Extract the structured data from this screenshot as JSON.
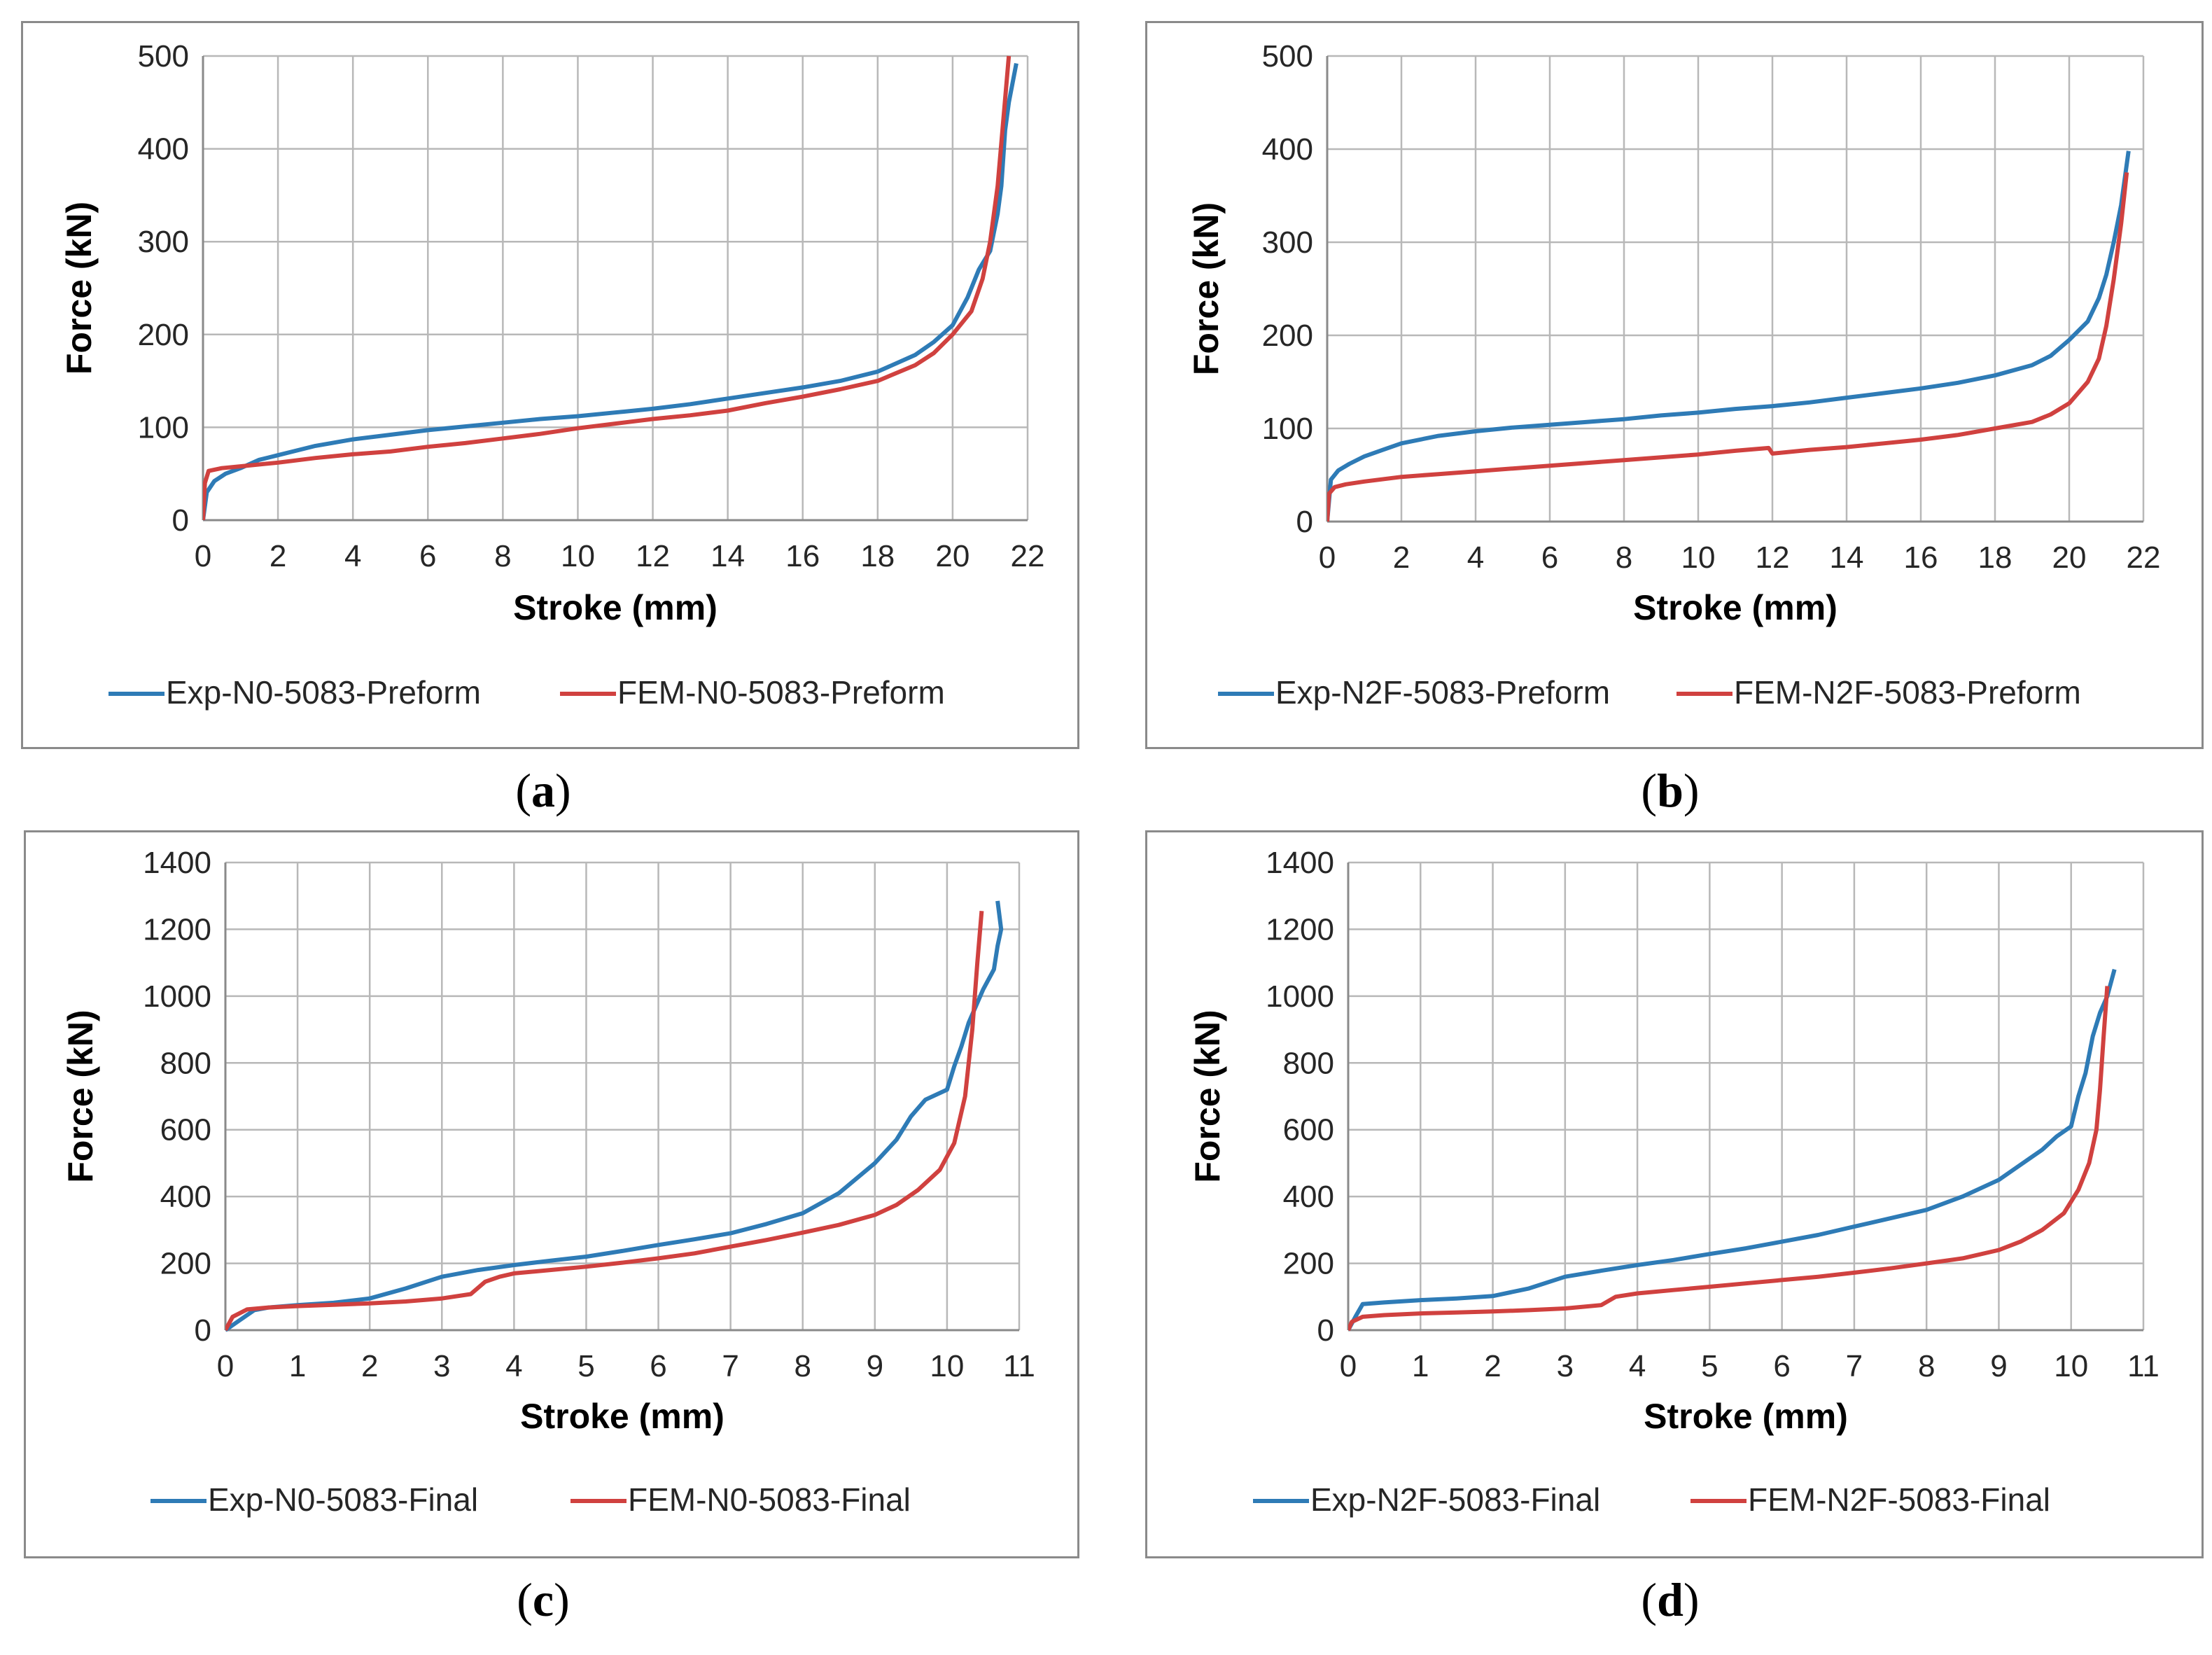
{
  "figure": {
    "captions": [
      "a",
      "b",
      "c",
      "d"
    ]
  },
  "colors": {
    "exp": "#2e7bb6",
    "fem": "#d0413f",
    "grid": "#b8b8b8",
    "frame": "#8a8a8a"
  },
  "chart_data": [
    {
      "id": "a",
      "type": "line",
      "xlabel": "Stroke (mm)",
      "ylabel": "Force (kN)",
      "xlim": [
        0,
        22
      ],
      "ylim": [
        0,
        500
      ],
      "xticks": [
        "0",
        "2",
        "4",
        "6",
        "8",
        "10",
        "12",
        "14",
        "16",
        "18",
        "20",
        "22"
      ],
      "yticks": [
        "0",
        "100",
        "200",
        "300",
        "400",
        "500"
      ],
      "grid": true,
      "legend_position": "bottom",
      "series": [
        {
          "name": "Exp-N0-5083-Preform",
          "color": "#2e7bb6",
          "x": [
            0,
            0.1,
            0.3,
            0.6,
            1,
            1.5,
            2,
            3,
            4,
            5,
            6,
            7,
            8,
            9,
            10,
            11,
            12,
            13,
            14,
            15,
            16,
            17,
            18,
            19,
            19.5,
            20,
            20.4,
            20.7,
            21.0,
            21.2,
            21.3,
            21.4,
            21.5,
            21.7
          ],
          "y": [
            0,
            30,
            42,
            50,
            56,
            65,
            70,
            80,
            87,
            92,
            97,
            101,
            105,
            109,
            112,
            116,
            120,
            125,
            131,
            137,
            143,
            150,
            160,
            178,
            192,
            210,
            240,
            270,
            290,
            330,
            360,
            420,
            450,
            492
          ]
        },
        {
          "name": "FEM-N0-5083-Preform",
          "color": "#d0413f",
          "x": [
            0,
            0.05,
            0.15,
            0.5,
            1,
            2,
            3,
            4,
            5,
            6,
            7,
            8,
            9,
            10,
            11,
            12,
            13,
            14,
            15,
            16,
            17,
            18,
            19,
            19.5,
            20,
            20.5,
            20.8,
            21.0,
            21.2,
            21.35,
            21.5
          ],
          "y": [
            0,
            40,
            53,
            56,
            58,
            62,
            67,
            71,
            74,
            79,
            83,
            88,
            93,
            99,
            104,
            109,
            113,
            118,
            126,
            133,
            141,
            150,
            167,
            180,
            200,
            225,
            260,
            300,
            360,
            430,
            500
          ]
        }
      ]
    },
    {
      "id": "b",
      "type": "line",
      "xlabel": "Stroke (mm)",
      "ylabel": "Force (kN)",
      "xlim": [
        0,
        22
      ],
      "ylim": [
        0,
        500
      ],
      "xticks": [
        "0",
        "2",
        "4",
        "6",
        "8",
        "10",
        "12",
        "14",
        "16",
        "18",
        "20",
        "22"
      ],
      "yticks": [
        "0",
        "100",
        "200",
        "300",
        "400",
        "500"
      ],
      "grid": true,
      "legend_position": "bottom",
      "series": [
        {
          "name": "Exp-N2F-5083-Preform",
          "color": "#2e7bb6",
          "x": [
            0,
            0.1,
            0.3,
            0.6,
            1,
            1.5,
            2,
            3,
            4,
            5,
            6,
            7,
            8,
            9,
            10,
            11,
            12,
            13,
            14,
            15,
            16,
            17,
            18,
            19,
            19.5,
            20,
            20.5,
            20.8,
            21.0,
            21.2,
            21.4,
            21.6
          ],
          "y": [
            0,
            45,
            55,
            62,
            70,
            77,
            84,
            92,
            97,
            101,
            104,
            107,
            110,
            114,
            117,
            121,
            124,
            128,
            133,
            138,
            143,
            149,
            157,
            168,
            178,
            195,
            215,
            240,
            265,
            300,
            340,
            398
          ]
        },
        {
          "name": "FEM-N2F-5083-Preform",
          "color": "#d0413f",
          "x": [
            0,
            0.05,
            0.2,
            0.5,
            1,
            2,
            3,
            4,
            5,
            6,
            7,
            8,
            9,
            10,
            11,
            11.9,
            12.0,
            13,
            14,
            15,
            16,
            17,
            18,
            19,
            19.5,
            20,
            20.5,
            20.8,
            21.0,
            21.2,
            21.4,
            21.55
          ],
          "y": [
            0,
            30,
            37,
            40,
            43,
            48,
            51,
            54,
            57,
            60,
            63,
            66,
            69,
            72,
            76,
            79,
            73,
            77,
            80,
            84,
            88,
            93,
            100,
            107,
            115,
            127,
            150,
            175,
            210,
            260,
            320,
            375
          ]
        }
      ]
    },
    {
      "id": "c",
      "type": "line",
      "xlabel": "Stroke (mm)",
      "ylabel": "Force (kN)",
      "xlim": [
        0,
        11
      ],
      "ylim": [
        0,
        1400
      ],
      "xticks": [
        "0",
        "1",
        "2",
        "3",
        "4",
        "5",
        "6",
        "7",
        "8",
        "9",
        "10",
        "11"
      ],
      "yticks": [
        "0",
        "200",
        "400",
        "600",
        "800",
        "1000",
        "1200",
        "1400"
      ],
      "grid": true,
      "legend_position": "bottom",
      "series": [
        {
          "name": "Exp-N0-5083-Final",
          "color": "#2e7bb6",
          "x": [
            0,
            0.2,
            0.4,
            0.6,
            1,
            1.5,
            2,
            2.5,
            3,
            3.5,
            4,
            4.5,
            5,
            5.5,
            6,
            6.5,
            7,
            7.5,
            8,
            8.5,
            9,
            9.3,
            9.5,
            9.7,
            10.0,
            10.1,
            10.2,
            10.3,
            10.5,
            10.65,
            10.7,
            10.75,
            10.7
          ],
          "y": [
            0,
            30,
            60,
            68,
            75,
            82,
            95,
            125,
            160,
            180,
            195,
            208,
            220,
            237,
            255,
            272,
            290,
            318,
            350,
            410,
            500,
            570,
            640,
            690,
            720,
            790,
            850,
            920,
            1020,
            1080,
            1150,
            1200,
            1285
          ]
        },
        {
          "name": "FEM-N0-5083-Final",
          "color": "#d0413f",
          "x": [
            0,
            0.1,
            0.3,
            0.6,
            1,
            1.5,
            2,
            2.5,
            3,
            3.4,
            3.6,
            3.8,
            4,
            4.5,
            5,
            5.5,
            6,
            6.5,
            7,
            7.5,
            8,
            8.5,
            9,
            9.3,
            9.6,
            9.9,
            10.1,
            10.25,
            10.35,
            10.42,
            10.48
          ],
          "y": [
            0,
            40,
            62,
            68,
            72,
            76,
            80,
            86,
            95,
            108,
            145,
            160,
            170,
            180,
            190,
            202,
            215,
            230,
            250,
            270,
            292,
            315,
            345,
            375,
            420,
            480,
            560,
            700,
            900,
            1100,
            1255
          ]
        }
      ]
    },
    {
      "id": "d",
      "type": "line",
      "xlabel": "Stroke (mm)",
      "ylabel": "Force (kN)",
      "xlim": [
        0,
        11
      ],
      "ylim": [
        0,
        1400
      ],
      "xticks": [
        "0",
        "1",
        "2",
        "3",
        "4",
        "5",
        "6",
        "7",
        "8",
        "9",
        "10",
        "11"
      ],
      "yticks": [
        "0",
        "200",
        "400",
        "600",
        "800",
        "1000",
        "1200",
        "1400"
      ],
      "grid": true,
      "legend_position": "bottom",
      "series": [
        {
          "name": "Exp-N2F-5083-Final",
          "color": "#2e7bb6",
          "x": [
            0,
            0.1,
            0.2,
            0.5,
            1,
            1.5,
            2,
            2.5,
            3,
            3.5,
            4,
            4.5,
            5,
            5.5,
            6,
            6.5,
            7,
            7.5,
            8,
            8.5,
            9,
            9.3,
            9.6,
            9.8,
            10.0,
            10.1,
            10.2,
            10.3,
            10.4,
            10.5,
            10.6
          ],
          "y": [
            0,
            40,
            78,
            83,
            90,
            95,
            102,
            125,
            160,
            178,
            195,
            210,
            228,
            245,
            265,
            285,
            310,
            335,
            360,
            400,
            450,
            495,
            540,
            580,
            610,
            700,
            770,
            880,
            950,
            1000,
            1080
          ]
        },
        {
          "name": "FEM-N2F-5083-Final",
          "color": "#d0413f",
          "x": [
            0,
            0.05,
            0.2,
            0.5,
            1,
            1.5,
            2,
            2.5,
            3,
            3.5,
            3.7,
            4,
            4.5,
            5,
            5.5,
            6,
            6.5,
            7,
            7.5,
            8,
            8.5,
            9,
            9.3,
            9.6,
            9.9,
            10.1,
            10.25,
            10.35,
            10.4,
            10.45,
            10.5
          ],
          "y": [
            0,
            25,
            40,
            45,
            50,
            53,
            56,
            60,
            65,
            75,
            100,
            110,
            120,
            130,
            140,
            150,
            160,
            172,
            185,
            200,
            215,
            240,
            265,
            300,
            350,
            420,
            500,
            600,
            720,
            880,
            1030
          ]
        }
      ]
    }
  ]
}
